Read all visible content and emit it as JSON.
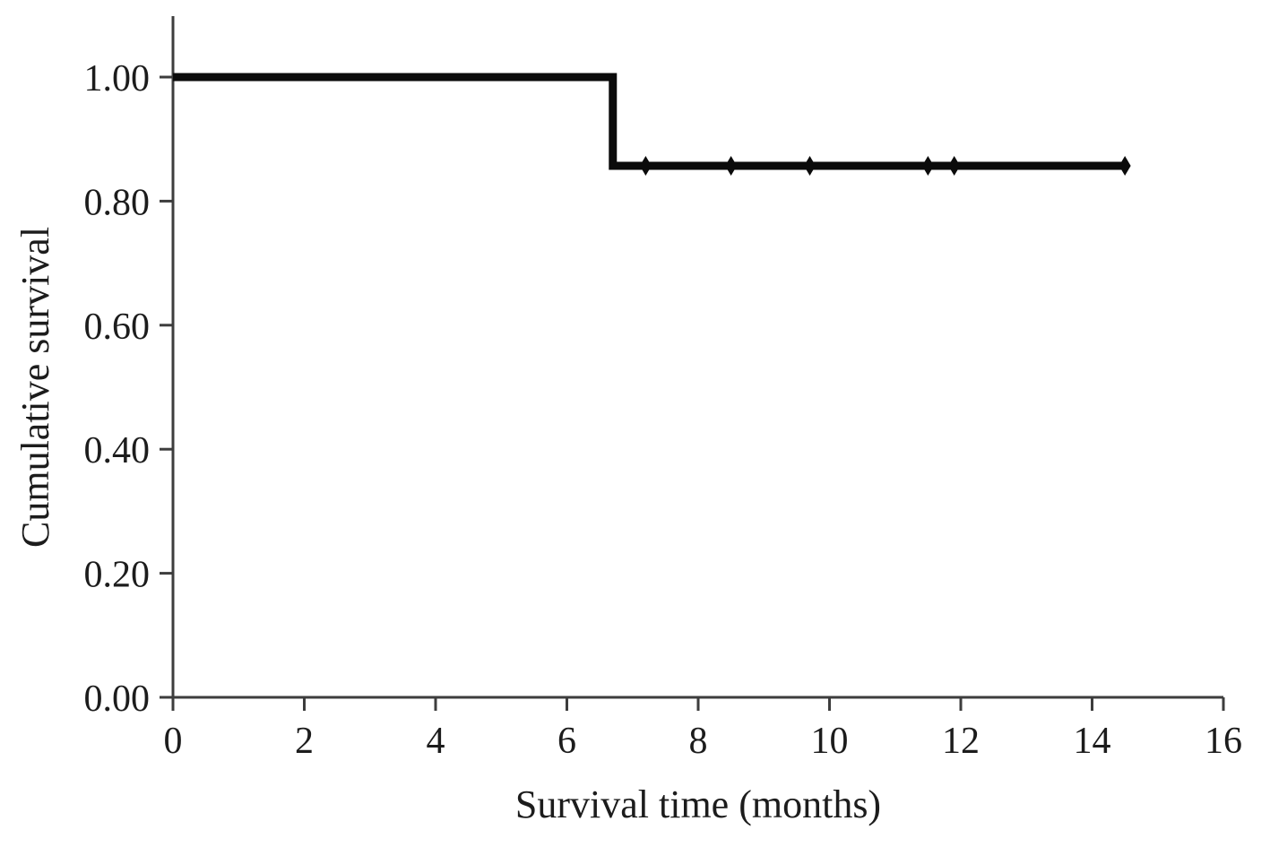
{
  "figure": {
    "background_color": "#ffffff",
    "curve_color": "#0b0b0b",
    "axis_color": "#3d3d3d",
    "text_color": "#1c1c1c"
  },
  "chart_data": {
    "type": "line",
    "subtype": "kaplan-meier-step",
    "title": "",
    "xlabel": "Survival time (months)",
    "ylabel": "Cumulative survival",
    "xlim": [
      0,
      16
    ],
    "ylim": [
      0.0,
      1.0
    ],
    "grid": false,
    "legend": null,
    "x_ticks": [
      0,
      2,
      4,
      6,
      8,
      10,
      12,
      14,
      16
    ],
    "x_tick_labels": [
      "0",
      "2",
      "4",
      "6",
      "8",
      "10",
      "12",
      "14",
      "16"
    ],
    "y_ticks": [
      0.0,
      0.2,
      0.4,
      0.6,
      0.8,
      1.0
    ],
    "y_tick_labels": [
      "0.00",
      "0.20",
      "0.40",
      "0.60",
      "0.80",
      "1.00"
    ],
    "series": [
      {
        "name": "Cumulative survival",
        "step_points": [
          {
            "x": 0.0,
            "y": 1.0
          },
          {
            "x": 6.7,
            "y": 1.0
          },
          {
            "x": 6.7,
            "y": 0.857
          },
          {
            "x": 14.5,
            "y": 0.857
          }
        ],
        "censor_marks": [
          {
            "x": 7.2,
            "y": 0.857
          },
          {
            "x": 8.5,
            "y": 0.857
          },
          {
            "x": 9.7,
            "y": 0.857
          },
          {
            "x": 11.5,
            "y": 0.857
          },
          {
            "x": 11.9,
            "y": 0.857
          },
          {
            "x": 14.5,
            "y": 0.857
          }
        ]
      }
    ]
  }
}
